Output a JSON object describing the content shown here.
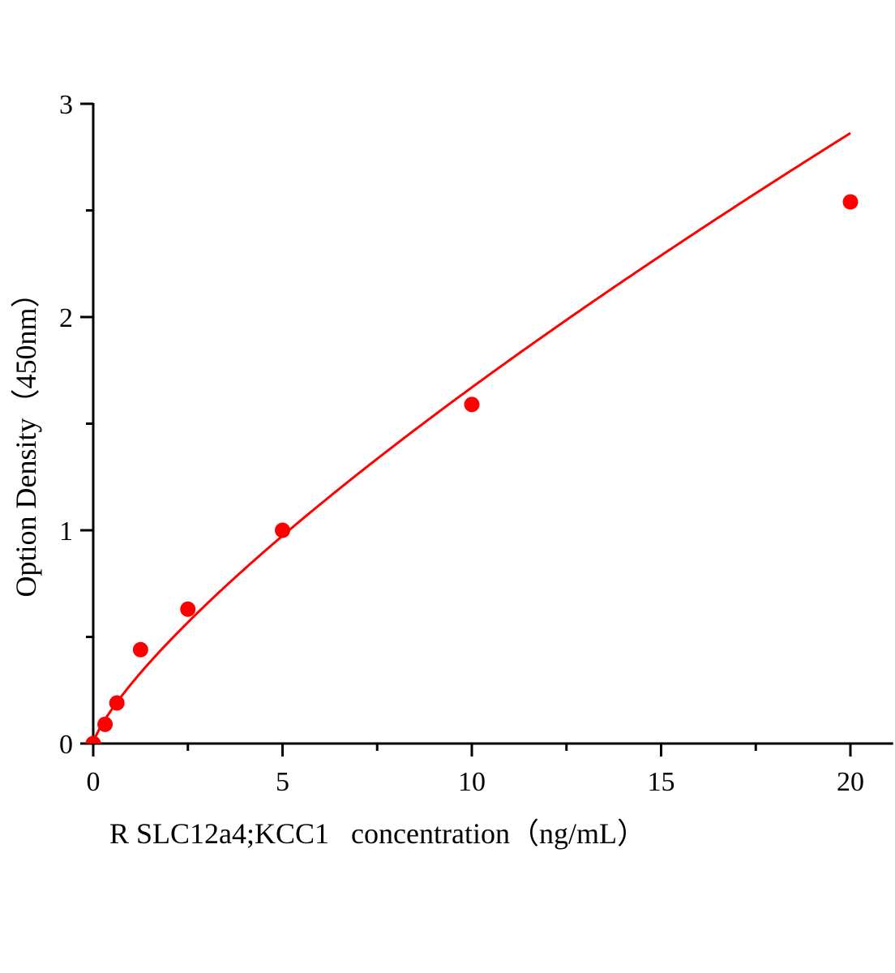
{
  "chart_data": {
    "type": "scatter",
    "xlabel": "R SLC12a4;KCC1   concentration（ng/mL）",
    "ylabel": "Option Density（450nm）",
    "xlim": [
      0,
      21
    ],
    "ylim": [
      0,
      3
    ],
    "x_ticks": [
      "0",
      "5",
      "10",
      "15",
      "20"
    ],
    "y_ticks": [
      "0",
      "1",
      "2",
      "3"
    ],
    "grid": false,
    "series": [
      {
        "x": [
          0,
          0.3125,
          0.625,
          1.25,
          2.5,
          5,
          10,
          20
        ],
        "y": [
          0.0,
          0.09,
          0.19,
          0.44,
          0.63,
          1.0,
          1.59,
          2.54
        ],
        "fit_curve": true
      }
    ],
    "colors": {
      "points": "#ff0000",
      "curve": "#ff0000",
      "axes": "#000000"
    }
  }
}
